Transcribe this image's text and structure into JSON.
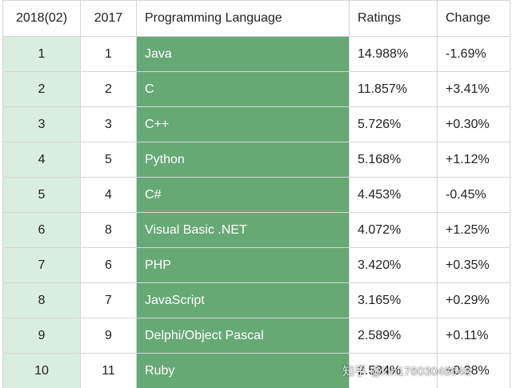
{
  "table": {
    "headers": [
      "2018(02)",
      "2017",
      "Programming Language",
      "Ratings",
      "Change"
    ],
    "rows": [
      [
        "1",
        "1",
        "Java",
        "14.988%",
        "-1.69%"
      ],
      [
        "2",
        "2",
        "C",
        "11.857%",
        "+3.41%"
      ],
      [
        "3",
        "3",
        "C++",
        "5.726%",
        "+0.30%"
      ],
      [
        "4",
        "5",
        "Python",
        "5.168%",
        "+1.12%"
      ],
      [
        "5",
        "4",
        "C#",
        "4.453%",
        "-0.45%"
      ],
      [
        "6",
        "8",
        "Visual Basic .NET",
        "4.072%",
        "+1.25%"
      ],
      [
        "7",
        "6",
        "PHP",
        "3.420%",
        "+0.35%"
      ],
      [
        "8",
        "7",
        "JavaScript",
        "3.165%",
        "+0.29%"
      ],
      [
        "9",
        "9",
        "Delphi/Object Pascal",
        "2.589%",
        "+0.11%"
      ],
      [
        "10",
        "11",
        "Ruby",
        "2.534%",
        "+0.38%"
      ]
    ]
  },
  "watermark": {
    "text": "知乎 @kin17603048648"
  },
  "colors": {
    "language_column_bg": "#66a975",
    "rank_column_bg": "#d9eedf",
    "grid": "#d6d6d6"
  }
}
